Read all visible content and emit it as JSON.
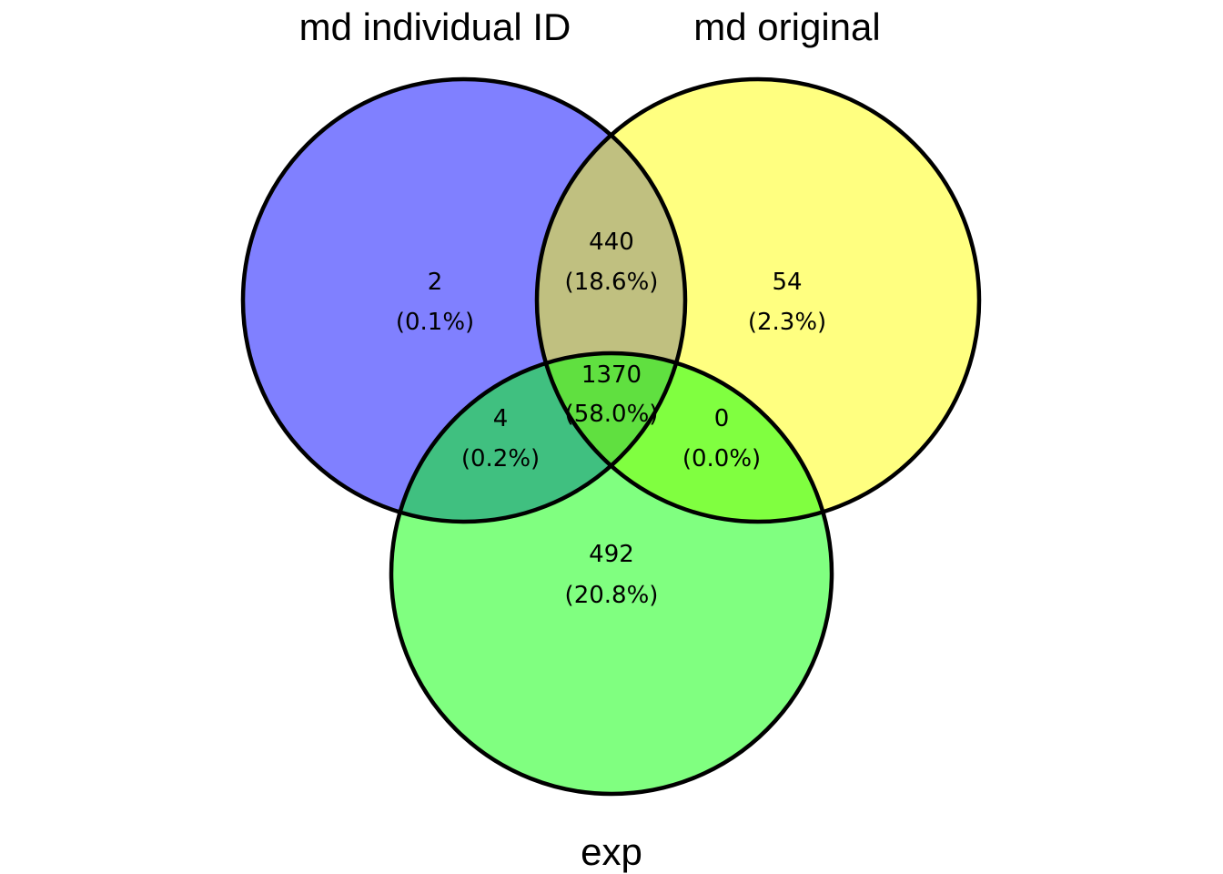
{
  "sets": [
    {
      "key": "a",
      "label": "md individual ID",
      "color": "#8080ff"
    },
    {
      "key": "b",
      "label": "md original",
      "color": "#ffff80"
    },
    {
      "key": "c",
      "label": "exp",
      "color": "#80ff80"
    }
  ],
  "regions": {
    "a_only": {
      "count": "2",
      "pct": "(0.1%)"
    },
    "b_only": {
      "count": "54",
      "pct": "(2.3%)"
    },
    "c_only": {
      "count": "492",
      "pct": "(20.8%)"
    },
    "ab": {
      "count": "440",
      "pct": "(18.6%)"
    },
    "ac": {
      "count": "4",
      "pct": "(0.2%)"
    },
    "bc": {
      "count": "0",
      "pct": "(0.0%)"
    },
    "abc": {
      "count": "1370",
      "pct": "(58.0%)"
    }
  },
  "overlap_colors": {
    "ab": "#c0c080",
    "ac": "#40c080",
    "bc": "#80ff40",
    "abc": "#60e040"
  }
}
